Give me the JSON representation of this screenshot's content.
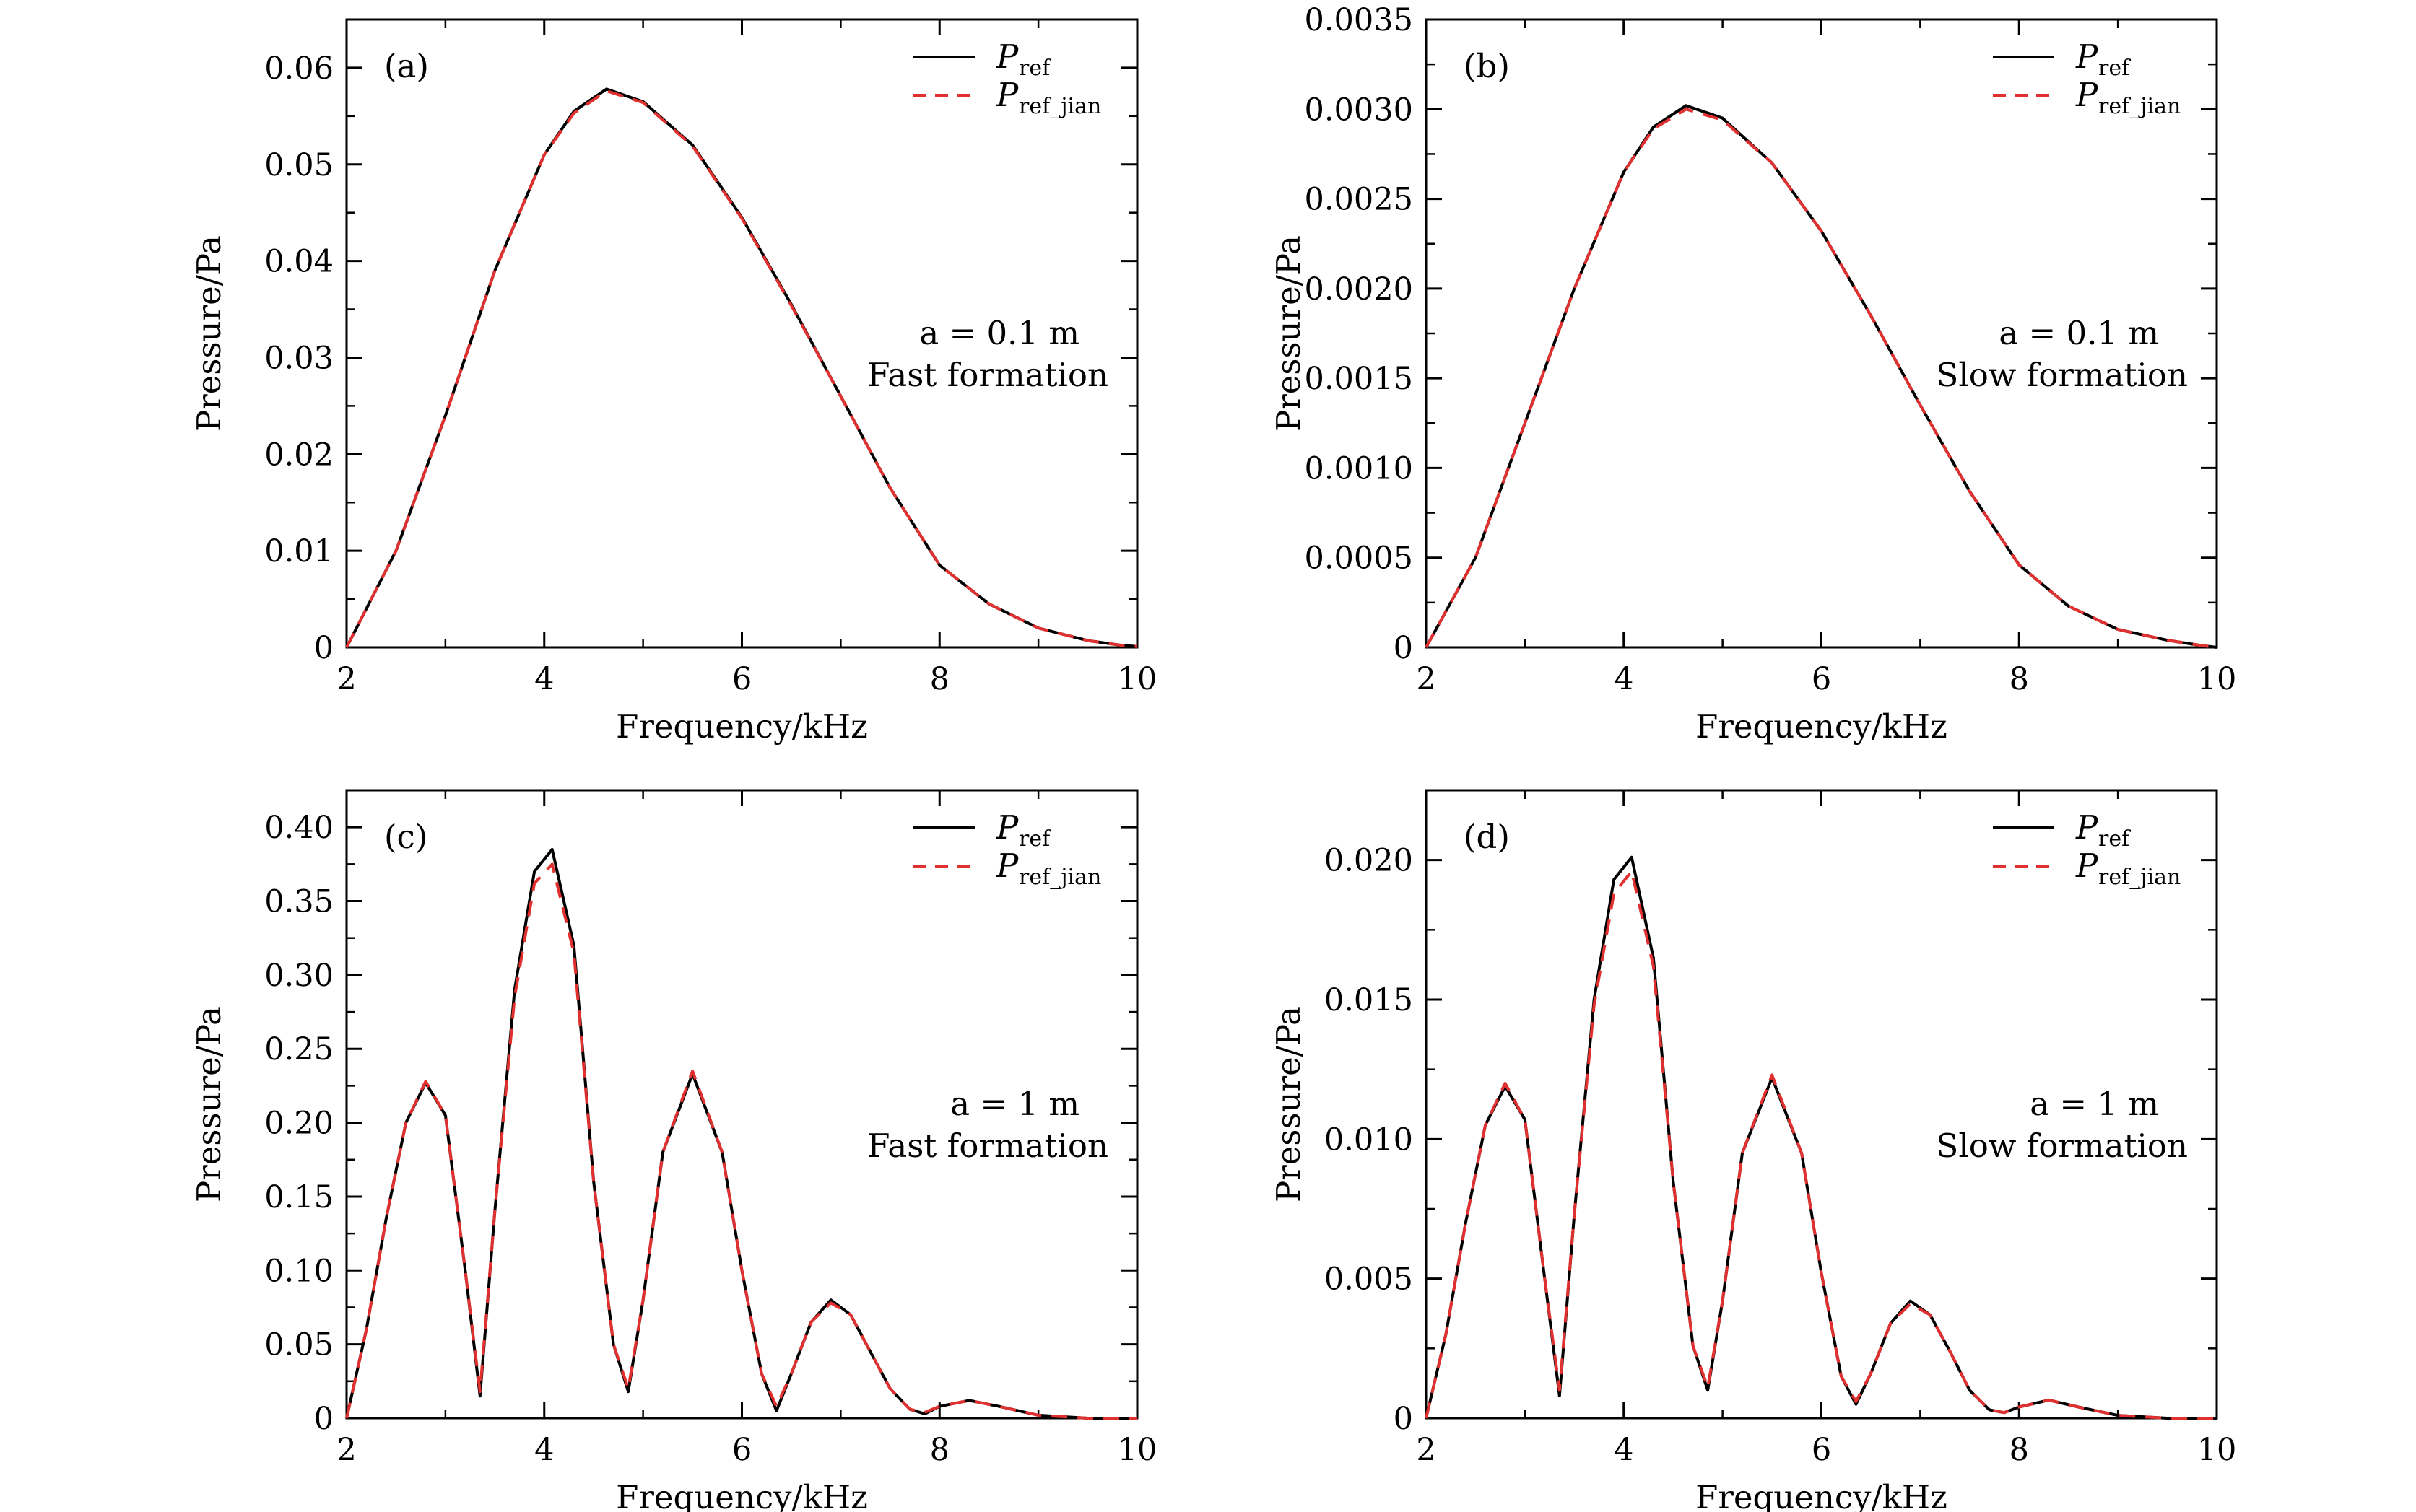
{
  "figure": {
    "colors": {
      "ref": "#000000",
      "ref_jian": "#e03030",
      "frame": "#000000",
      "background": "#ffffff"
    },
    "legend": {
      "ref": {
        "main": "P",
        "sub": "ref"
      },
      "ref_jian": {
        "main": "P",
        "sub": "ref_jian"
      }
    }
  },
  "chart_data": [
    {
      "type": "line",
      "panel": "(a)",
      "xlabel": "Frequency/kHz",
      "ylabel": "Pressure/Pa",
      "xlim": [
        2,
        10
      ],
      "ylim": [
        0,
        0.065
      ],
      "xticks": [
        "2",
        "4",
        "6",
        "8",
        "10"
      ],
      "yticks": [
        "0",
        "0.01",
        "0.02",
        "0.03",
        "0.04",
        "0.05",
        "0.06"
      ],
      "annotation": [
        "a = 0.1 m",
        "Fast formation"
      ],
      "series": [
        {
          "name": "P_ref",
          "style": "solid",
          "x": [
            2.0,
            2.5,
            3.0,
            3.5,
            4.0,
            4.3,
            4.63,
            5.0,
            5.5,
            6.0,
            6.5,
            7.0,
            7.5,
            8.0,
            8.5,
            9.0,
            9.5,
            9.85,
            10.0
          ],
          "values": [
            0.0,
            0.01,
            0.024,
            0.039,
            0.051,
            0.0555,
            0.0578,
            0.0565,
            0.052,
            0.0445,
            0.0355,
            0.026,
            0.0165,
            0.0085,
            0.0045,
            0.002,
            0.0007,
            0.0002,
            0.0001
          ]
        },
        {
          "name": "P_ref_jian",
          "style": "dashed",
          "x": [
            2.0,
            2.5,
            3.0,
            3.5,
            4.0,
            4.3,
            4.63,
            5.0,
            5.5,
            6.0,
            6.5,
            7.0,
            7.5,
            8.0,
            8.5,
            9.0,
            9.5,
            9.85,
            10.0
          ],
          "values": [
            0.0,
            0.01,
            0.024,
            0.039,
            0.051,
            0.0553,
            0.0576,
            0.0564,
            0.0519,
            0.0444,
            0.0354,
            0.026,
            0.0165,
            0.0085,
            0.0045,
            0.002,
            0.0007,
            0.0002,
            0.0001
          ]
        }
      ]
    },
    {
      "type": "line",
      "panel": "(b)",
      "xlabel": "Frequency/kHz",
      "ylabel": "Pressure/Pa",
      "xlim": [
        2,
        10
      ],
      "ylim": [
        0,
        0.0035
      ],
      "xticks": [
        "2",
        "4",
        "6",
        "8",
        "10"
      ],
      "yticks": [
        "0",
        "0.0005",
        "0.0010",
        "0.0015",
        "0.0020",
        "0.0025",
        "0.0030",
        "0.0035"
      ],
      "annotation": [
        "a = 0.1 m",
        "Slow formation"
      ],
      "series": [
        {
          "name": "P_ref",
          "style": "solid",
          "x": [
            2.0,
            2.5,
            3.0,
            3.5,
            4.0,
            4.3,
            4.63,
            5.0,
            5.5,
            6.0,
            6.5,
            7.0,
            7.5,
            8.0,
            8.5,
            9.0,
            9.5,
            9.85,
            10.0
          ],
          "values": [
            0.0,
            0.0005,
            0.00125,
            0.002,
            0.00265,
            0.0029,
            0.00302,
            0.00295,
            0.0027,
            0.00232,
            0.00185,
            0.00135,
            0.00087,
            0.00046,
            0.00023,
            0.0001,
            4e-05,
            1e-05,
            0.0
          ]
        },
        {
          "name": "P_ref_jian",
          "style": "dashed",
          "x": [
            2.0,
            2.5,
            3.0,
            3.5,
            4.0,
            4.3,
            4.63,
            5.0,
            5.5,
            6.0,
            6.5,
            7.0,
            7.5,
            8.0,
            8.5,
            9.0,
            9.5,
            9.85,
            10.0
          ],
          "values": [
            0.0,
            0.0005,
            0.00125,
            0.002,
            0.00265,
            0.00289,
            0.003,
            0.00294,
            0.0027,
            0.00232,
            0.00185,
            0.00135,
            0.00087,
            0.00046,
            0.00023,
            0.0001,
            4e-05,
            1e-05,
            0.0
          ]
        }
      ]
    },
    {
      "type": "line",
      "panel": "(c)",
      "xlabel": "Frequency/kHz",
      "ylabel": "Pressure/Pa",
      "xlim": [
        2,
        10
      ],
      "ylim": [
        0,
        0.425
      ],
      "xticks": [
        "2",
        "4",
        "6",
        "8",
        "10"
      ],
      "yticks": [
        "0",
        "0.05",
        "0.10",
        "0.15",
        "0.20",
        "0.25",
        "0.30",
        "0.35",
        "0.40"
      ],
      "annotation": [
        "a = 1 m",
        "Fast formation"
      ],
      "series": [
        {
          "name": "P_ref",
          "style": "solid",
          "x": [
            2.0,
            2.2,
            2.4,
            2.6,
            2.8,
            3.0,
            3.2,
            3.35,
            3.5,
            3.7,
            3.9,
            4.08,
            4.3,
            4.5,
            4.7,
            4.85,
            5.0,
            5.2,
            5.5,
            5.8,
            6.0,
            6.2,
            6.35,
            6.5,
            6.7,
            6.9,
            7.1,
            7.3,
            7.5,
            7.7,
            7.85,
            8.0,
            8.3,
            8.6,
            9.0,
            9.5,
            10.0
          ],
          "values": [
            0.0,
            0.06,
            0.135,
            0.2,
            0.227,
            0.205,
            0.1,
            0.015,
            0.14,
            0.29,
            0.37,
            0.385,
            0.32,
            0.16,
            0.05,
            0.018,
            0.08,
            0.18,
            0.233,
            0.18,
            0.1,
            0.03,
            0.005,
            0.03,
            0.065,
            0.08,
            0.07,
            0.045,
            0.02,
            0.006,
            0.003,
            0.008,
            0.012,
            0.008,
            0.002,
            0.0,
            0.0
          ]
        },
        {
          "name": "P_ref_jian",
          "style": "dashed",
          "x": [
            2.0,
            2.2,
            2.4,
            2.6,
            2.8,
            3.0,
            3.2,
            3.35,
            3.5,
            3.7,
            3.9,
            4.08,
            4.3,
            4.5,
            4.7,
            4.85,
            5.0,
            5.2,
            5.5,
            5.8,
            6.0,
            6.2,
            6.35,
            6.5,
            6.7,
            6.9,
            7.1,
            7.3,
            7.5,
            7.7,
            7.85,
            8.0,
            8.3,
            8.6,
            9.0,
            9.5,
            10.0
          ],
          "values": [
            0.0,
            0.06,
            0.135,
            0.2,
            0.228,
            0.205,
            0.1,
            0.018,
            0.14,
            0.285,
            0.362,
            0.375,
            0.315,
            0.16,
            0.05,
            0.02,
            0.08,
            0.18,
            0.235,
            0.18,
            0.1,
            0.03,
            0.008,
            0.03,
            0.065,
            0.078,
            0.07,
            0.045,
            0.02,
            0.006,
            0.004,
            0.008,
            0.012,
            0.008,
            0.002,
            0.0,
            0.0
          ]
        }
      ]
    },
    {
      "type": "line",
      "panel": "(d)",
      "xlabel": "Frequency/kHz",
      "ylabel": "Pressure/Pa",
      "xlim": [
        2,
        10
      ],
      "ylim": [
        0,
        0.0225
      ],
      "xticks": [
        "2",
        "4",
        "6",
        "8",
        "10"
      ],
      "yticks": [
        "0",
        "0.005",
        "0.010",
        "0.015",
        "0.020"
      ],
      "annotation": [
        "a = 1 m",
        "Slow formation"
      ],
      "series": [
        {
          "name": "P_ref",
          "style": "solid",
          "x": [
            2.0,
            2.2,
            2.4,
            2.6,
            2.8,
            3.0,
            3.2,
            3.35,
            3.5,
            3.7,
            3.9,
            4.08,
            4.3,
            4.5,
            4.7,
            4.85,
            5.0,
            5.2,
            5.5,
            5.8,
            6.0,
            6.2,
            6.35,
            6.5,
            6.7,
            6.9,
            7.1,
            7.3,
            7.5,
            7.7,
            7.85,
            8.0,
            8.3,
            8.6,
            9.0,
            9.5,
            10.0
          ],
          "values": [
            0.0,
            0.003,
            0.007,
            0.0105,
            0.0119,
            0.0107,
            0.005,
            0.0008,
            0.0073,
            0.015,
            0.0193,
            0.0201,
            0.0165,
            0.0085,
            0.0026,
            0.001,
            0.0042,
            0.0095,
            0.0122,
            0.0095,
            0.0052,
            0.0015,
            0.0005,
            0.0016,
            0.0034,
            0.0042,
            0.0037,
            0.0024,
            0.001,
            0.0003,
            0.0002,
            0.0004,
            0.00065,
            0.0004,
            0.0001,
            0.0,
            0.0
          ]
        },
        {
          "name": "P_ref_jian",
          "style": "dashed",
          "x": [
            2.0,
            2.2,
            2.4,
            2.6,
            2.8,
            3.0,
            3.2,
            3.35,
            3.5,
            3.7,
            3.9,
            4.08,
            4.3,
            4.5,
            4.7,
            4.85,
            5.0,
            5.2,
            5.5,
            5.8,
            6.0,
            6.2,
            6.35,
            6.5,
            6.7,
            6.9,
            7.1,
            7.3,
            7.5,
            7.7,
            7.85,
            8.0,
            8.3,
            8.6,
            9.0,
            9.5,
            10.0
          ],
          "values": [
            0.0,
            0.003,
            0.007,
            0.0105,
            0.012,
            0.0107,
            0.005,
            0.001,
            0.0073,
            0.0148,
            0.0188,
            0.0196,
            0.0162,
            0.0085,
            0.0026,
            0.0011,
            0.0042,
            0.0095,
            0.0123,
            0.0095,
            0.0052,
            0.0015,
            0.0006,
            0.0016,
            0.0034,
            0.0041,
            0.0037,
            0.0024,
            0.001,
            0.0003,
            0.0002,
            0.0004,
            0.00065,
            0.0004,
            0.0001,
            0.0,
            0.0
          ]
        }
      ]
    }
  ]
}
